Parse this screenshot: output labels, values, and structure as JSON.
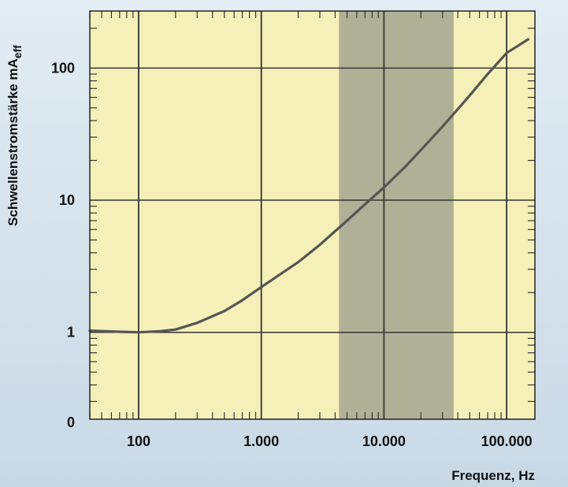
{
  "chart_data": {
    "type": "line",
    "title": "",
    "xlabel": "Frequenz, Hz",
    "ylabel": "Schwellenstromstärke mA",
    "ylabel_sub": "eff",
    "x_scale": "log",
    "y_scale": "log",
    "xlim": [
      40,
      170000
    ],
    "ylim": [
      0.22,
      270
    ],
    "x_ticks": [
      {
        "value": 100,
        "label": "100"
      },
      {
        "value": 1000,
        "label": "1.000"
      },
      {
        "value": 10000,
        "label": "10.000"
      },
      {
        "value": 100000,
        "label": "100.000"
      }
    ],
    "y_ticks": [
      {
        "value": 1,
        "label": "1"
      },
      {
        "value": 10,
        "label": "10"
      },
      {
        "value": 100,
        "label": "100"
      }
    ],
    "y_bottom_label": "0",
    "shaded_band": {
      "x_from": 4300,
      "x_to": 37000,
      "color": "#a8a894"
    },
    "grid": true,
    "colors": {
      "plot_bg": "#f4f0b8",
      "curve": "#555555",
      "grid": "#333333"
    },
    "series": [
      {
        "x": [
          40,
          70,
          100,
          150,
          200,
          300,
          500,
          700,
          1000,
          2000,
          3000,
          5000,
          7000,
          10000,
          15000,
          20000,
          30000,
          50000,
          70000,
          100000,
          150000
        ],
        "y": [
          1.03,
          1.01,
          1.0,
          1.02,
          1.05,
          1.18,
          1.45,
          1.75,
          2.2,
          3.4,
          4.6,
          7.0,
          9.3,
          12.5,
          18,
          24,
          36,
          62,
          90,
          130,
          165
        ]
      }
    ]
  }
}
